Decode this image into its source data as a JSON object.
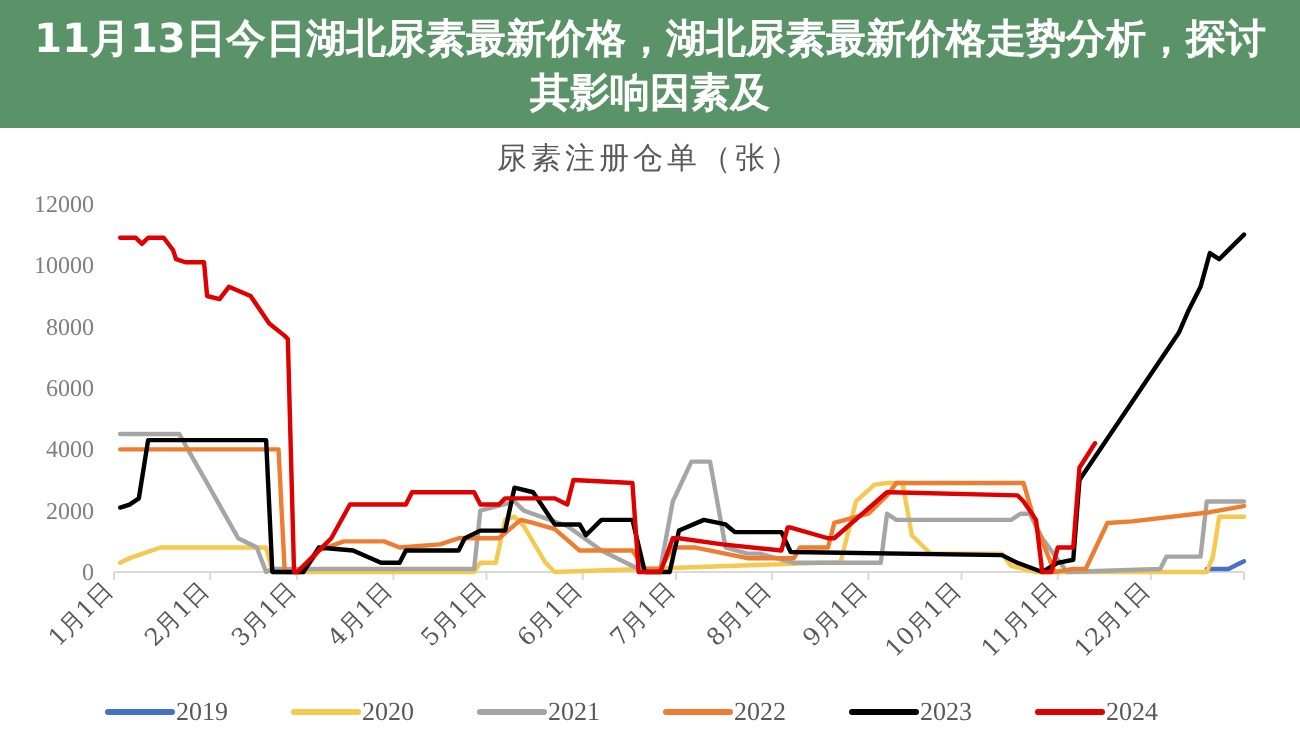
{
  "chart_data": {
    "type": "line",
    "title": "尿素注册仓单（张）",
    "subtitle": "11月13日今日湖北尿素最新价格，湖北尿素最新价格走势分析，探讨其影响因素及",
    "legend": "bottom",
    "xlim": [
      "--01-01",
      "--12-31"
    ],
    "xticks": [
      {
        "value": "--01-01",
        "label": "1月1日"
      },
      {
        "value": "--02-01",
        "label": "2月1日"
      },
      {
        "value": "--03-01",
        "label": "3月1日"
      },
      {
        "value": "--04-01",
        "label": "4月1日"
      },
      {
        "value": "--05-01",
        "label": "5月1日"
      },
      {
        "value": "--06-01",
        "label": "6月1日"
      },
      {
        "value": "--07-01",
        "label": "7月1日"
      },
      {
        "value": "--08-01",
        "label": "8月1日"
      },
      {
        "value": "--09-01",
        "label": "9月1日"
      },
      {
        "value": "--10-01",
        "label": "10月1日"
      },
      {
        "value": "--11-01",
        "label": "11月1日"
      },
      {
        "value": "--12-01",
        "label": "12月1日"
      },
      {
        "value": "--12-31",
        "label": null
      }
    ],
    "ylim": [
      0,
      12000
    ],
    "yticks": [
      0,
      2000,
      4000,
      6000,
      8000,
      10000,
      12000
    ],
    "series": [
      {
        "name": "2019",
        "color": "#4472c4",
        "x": [
          "--12-19",
          "--12-26",
          "--12-29",
          "--12-31"
        ],
        "values": [
          100,
          100,
          250,
          350
        ]
      },
      {
        "name": "2020",
        "color": "#f5c94f",
        "x": [
          "--01-03",
          "--01-06",
          "--01-16",
          "--01-22",
          "--02-19",
          "--02-21",
          "--04-27",
          "--04-29",
          "--05-04",
          "--05-07",
          "--05-10",
          "--05-13",
          "--05-20",
          "--05-23",
          "--08-17",
          "--08-23",
          "--08-28",
          "--09-03",
          "--09-07",
          "--09-12",
          "--09-15",
          "--09-21",
          "--10-14",
          "--10-17",
          "--10-25",
          "--12-19",
          "--12-21",
          "--12-23",
          "--12-31"
        ],
        "values": [
          300,
          450,
          800,
          800,
          800,
          0,
          0,
          300,
          300,
          1700,
          1800,
          1500,
          300,
          0,
          300,
          300,
          2300,
          2850,
          2900,
          2900,
          1200,
          600,
          600,
          200,
          0,
          0,
          500,
          1800,
          1800
        ]
      },
      {
        "name": "2021",
        "color": "#a5a5a5",
        "x": [
          "--01-03",
          "--01-22",
          "--01-27",
          "--01-31",
          "--02-10",
          "--02-16",
          "--02-19",
          "--02-21",
          "--04-27",
          "--04-29",
          "--05-10",
          "--05-13",
          "--05-27",
          "--06-07",
          "--06-19",
          "--06-26",
          "--06-30",
          "--07-06",
          "--07-12",
          "--07-17",
          "--07-24",
          "--07-28",
          "--08-08",
          "--08-10",
          "--09-05",
          "--09-07",
          "--09-10",
          "--10-17",
          "--10-20",
          "--10-23",
          "--10-27",
          "--11-04",
          "--12-04",
          "--12-06",
          "--12-17",
          "--12-19",
          "--12-31"
        ],
        "values": [
          4500,
          4500,
          3600,
          2900,
          1100,
          800,
          0,
          100,
          100,
          2000,
          2300,
          2000,
          1500,
          700,
          100,
          100,
          2300,
          3600,
          3600,
          800,
          600,
          600,
          300,
          300,
          300,
          1900,
          1700,
          1700,
          1900,
          1900,
          1100,
          0,
          100,
          500,
          500,
          2300,
          2300
        ]
      },
      {
        "name": "2022",
        "color": "#ed7d31",
        "x": [
          "--01-03",
          "--02-23",
          "--02-25",
          "--03-03",
          "--03-08",
          "--03-16",
          "--03-29",
          "--04-03",
          "--04-16",
          "--04-22",
          "--05-05",
          "--05-12",
          "--05-16",
          "--05-23",
          "--05-31",
          "--06-02",
          "--06-17",
          "--06-21",
          "--06-26",
          "--06-30",
          "--07-07",
          "--07-24",
          "--08-08",
          "--08-10",
          "--08-19",
          "--08-21",
          "--09-01",
          "--09-07",
          "--09-10",
          "--10-21",
          "--10-25",
          "--10-31",
          "--11-06",
          "--11-10",
          "--11-17",
          "--11-25",
          "--12-20",
          "--12-31"
        ],
        "values": [
          4000,
          4000,
          0,
          0,
          700,
          1000,
          1000,
          800,
          900,
          1100,
          1100,
          1700,
          1600,
          1400,
          700,
          700,
          700,
          100,
          100,
          800,
          800,
          450,
          450,
          800,
          800,
          1600,
          1900,
          2500,
          2900,
          2900,
          1500,
          0,
          100,
          100,
          1600,
          1650,
          1950,
          2150
        ]
      },
      {
        "name": "2023",
        "color": "#000000",
        "x": [
          "--01-03",
          "--01-06",
          "--01-09",
          "--01-12",
          "--02-18",
          "--02-19",
          "--02-21",
          "--03-03",
          "--03-08",
          "--03-19",
          "--03-28",
          "--04-03",
          "--04-05",
          "--04-22",
          "--04-24",
          "--04-29",
          "--05-07",
          "--05-10",
          "--05-16",
          "--05-23",
          "--05-31",
          "--06-02",
          "--06-07",
          "--06-17",
          "--06-21",
          "--06-29",
          "--07-02",
          "--07-10",
          "--07-17",
          "--07-20",
          "--08-04",
          "--08-07",
          "--10-14",
          "--10-19",
          "--10-27",
          "--11-01",
          "--11-06",
          "--11-08",
          "--12-10",
          "--12-13",
          "--12-17",
          "--12-20",
          "--12-23",
          "--12-27",
          "--12-31"
        ],
        "values": [
          2100,
          2200,
          2400,
          4300,
          4300,
          4300,
          0,
          0,
          800,
          700,
          300,
          300,
          700,
          700,
          1100,
          1350,
          1350,
          2750,
          2600,
          1550,
          1550,
          1200,
          1700,
          1700,
          0,
          0,
          1350,
          1700,
          1550,
          1300,
          1300,
          650,
          550,
          300,
          0,
          300,
          400,
          3000,
          7800,
          8500,
          9300,
          10400,
          10200,
          10600,
          11000
        ]
      },
      {
        "name": "2024",
        "color": "#e00000",
        "x": [
          "--01-03",
          "--01-08",
          "--01-10",
          "--01-12",
          "--01-17",
          "--01-20",
          "--01-21",
          "--01-24",
          "--01-30",
          "--01-31",
          "--02-04",
          "--02-07",
          "--02-14",
          "--02-20",
          "--02-25",
          "--02-26",
          "--02-28",
          "--03-01",
          "--03-06",
          "--03-12",
          "--03-18",
          "--03-26",
          "--03-28",
          "--04-05",
          "--04-07",
          "--04-27",
          "--04-29",
          "--05-05",
          "--05-07",
          "--05-23",
          "--05-27",
          "--05-29",
          "--06-17",
          "--06-19",
          "--06-26",
          "--06-30",
          "--07-02",
          "--07-16",
          "--08-04",
          "--08-06",
          "--08-07",
          "--08-19",
          "--08-21",
          "--09-07",
          "--09-08",
          "--10-19",
          "--10-21",
          "--10-25",
          "--10-27",
          "--10-30",
          "--11-01",
          "--11-06",
          "--11-08",
          "--11-13"
        ],
        "values": [
          10900,
          10900,
          10700,
          10900,
          10900,
          10500,
          10200,
          10100,
          10100,
          9000,
          8900,
          9300,
          9000,
          8100,
          7700,
          7600,
          0,
          0,
          500,
          1100,
          2200,
          2200,
          2200,
          2200,
          2600,
          2600,
          2200,
          2200,
          2400,
          2400,
          2200,
          3000,
          2900,
          0,
          0,
          1100,
          1100,
          900,
          700,
          1450,
          1450,
          1100,
          1100,
          2600,
          2600,
          2500,
          2300,
          1700,
          0,
          0,
          800,
          800,
          3400,
          4200
        ]
      }
    ]
  }
}
